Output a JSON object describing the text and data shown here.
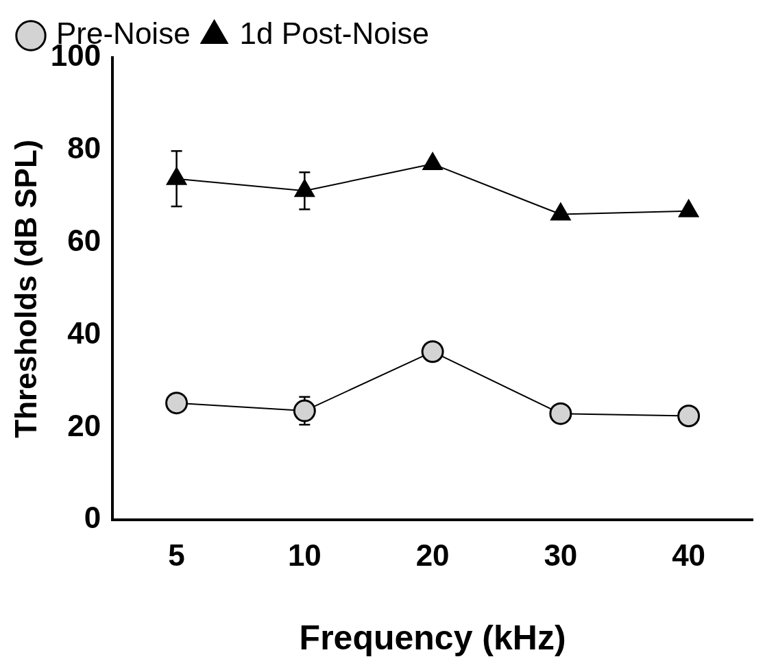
{
  "chart_data": {
    "type": "line",
    "xlabel": "Frequency (kHz)",
    "ylabel": "Thresholds (dB SPL)",
    "categories": [
      "5",
      "10",
      "20",
      "30",
      "40"
    ],
    "series": [
      {
        "name": "Pre-Noise",
        "color": "#d3d3d3",
        "marker": "circle",
        "values": [
          25.3,
          23.6,
          36.4,
          23.0,
          22.5
        ],
        "errors": [
          null,
          3,
          null,
          null,
          null
        ]
      },
      {
        "name": "1d Post-Noise",
        "color": "#000000",
        "marker": "triangle",
        "values": [
          73.8,
          71.2,
          77.0,
          66.1,
          66.8
        ],
        "errors": [
          6,
          4,
          null,
          null,
          null
        ]
      }
    ],
    "ylim": [
      0,
      100
    ],
    "yticks": [
      0,
      20,
      40,
      60,
      80,
      100
    ],
    "grid": false,
    "legend": "top left",
    "line_style": "solid"
  }
}
